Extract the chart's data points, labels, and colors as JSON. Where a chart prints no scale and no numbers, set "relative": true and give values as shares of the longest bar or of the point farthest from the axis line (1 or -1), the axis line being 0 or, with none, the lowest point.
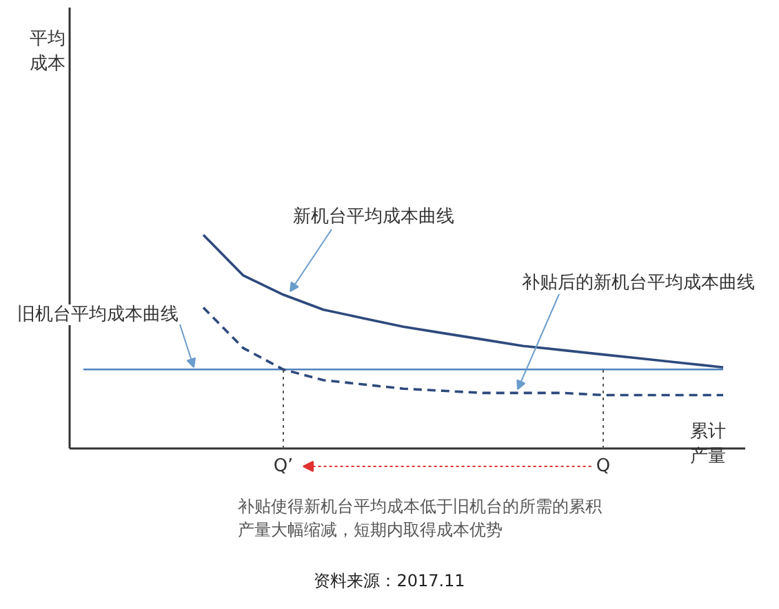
{
  "chart_data": {
    "type": "line",
    "relative": true,
    "xlabel": "累计产量",
    "categories": [
      null,
      null,
      null,
      null,
      null,
      "Q’",
      null,
      null,
      null,
      null,
      null,
      null,
      null,
      "Q",
      null,
      null,
      null
    ],
    "series": [
      {
        "name": "旧机台平均成本曲线",
        "color": "#4f81bd",
        "line_style": "solid",
        "values": [
          0.37,
          0.37,
          0.37,
          0.37,
          0.37,
          0.37,
          0.37,
          0.37,
          0.37,
          0.37,
          0.37,
          0.37,
          0.37,
          0.37,
          0.37,
          0.37,
          0.37
        ]
      },
      {
        "name": "新机台平均成本曲线",
        "color": "#2e4a7d",
        "line_style": "solid",
        "values": [
          null,
          null,
          null,
          1,
          0.81,
          0.72,
          0.65,
          0.61,
          0.57,
          0.54,
          0.51,
          0.48,
          0.46,
          0.44,
          0.42,
          0.4,
          0.38
        ]
      },
      {
        "name": "补贴后的新机台平均成本曲线",
        "color": "#2e4a7d",
        "line_style": "dashed",
        "values": [
          null,
          null,
          null,
          0.66,
          0.47,
          0.37,
          0.32,
          0.3,
          0.28,
          0.27,
          0.26,
          0.26,
          0.26,
          0.25,
          0.25,
          0.25,
          0.25
        ]
      }
    ],
    "ref_lines": [
      {
        "axis": "x",
        "value": "Q’",
        "color": "#555555",
        "line_style": "dotted"
      },
      {
        "axis": "x",
        "value": "Q",
        "color": "#555555",
        "line_style": "dotted"
      }
    ],
    "annotations": [
      "平均成本",
      "补贴使得新机台平均成本低于旧机台的所需的累积产量大幅缩减，短期内取得成本优势",
      "资料来源：2017.11"
    ]
  }
}
